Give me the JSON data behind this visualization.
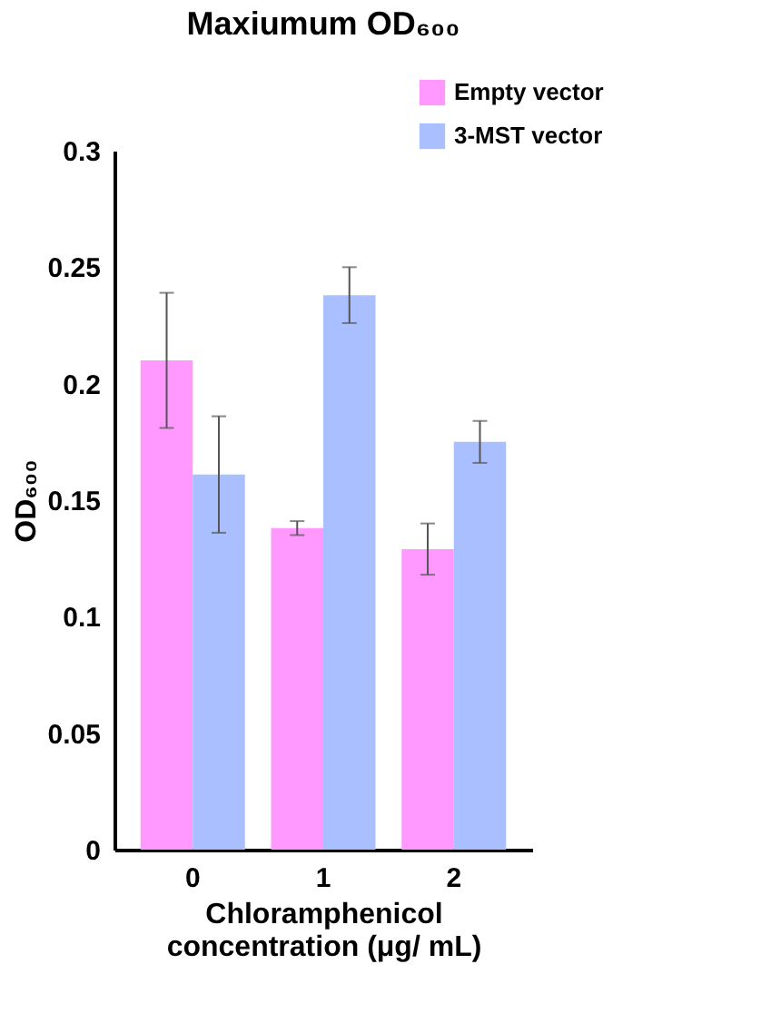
{
  "chart_data": {
    "type": "bar",
    "title": "Maxiumum OD₆₀₀",
    "xlabel": "Chloramphenicol\nconcentration (μg/ mL)",
    "ylabel": "OD₆₀₀",
    "categories": [
      "0",
      "1",
      "2"
    ],
    "series": [
      {
        "name": "Empty vector",
        "color": "#ff99ff",
        "values": [
          0.21,
          0.138,
          0.129
        ],
        "errors": [
          0.029,
          0.003,
          0.011
        ]
      },
      {
        "name": "3-MST vector",
        "color": "#aabfff",
        "values": [
          0.161,
          0.238,
          0.175
        ],
        "errors": [
          0.025,
          0.012,
          0.009
        ]
      }
    ],
    "ylim": [
      0,
      0.3
    ],
    "yticks": [
      0,
      0.05,
      0.1,
      0.15,
      0.2,
      0.25,
      0.3
    ],
    "grid": false,
    "legend": "top right"
  }
}
